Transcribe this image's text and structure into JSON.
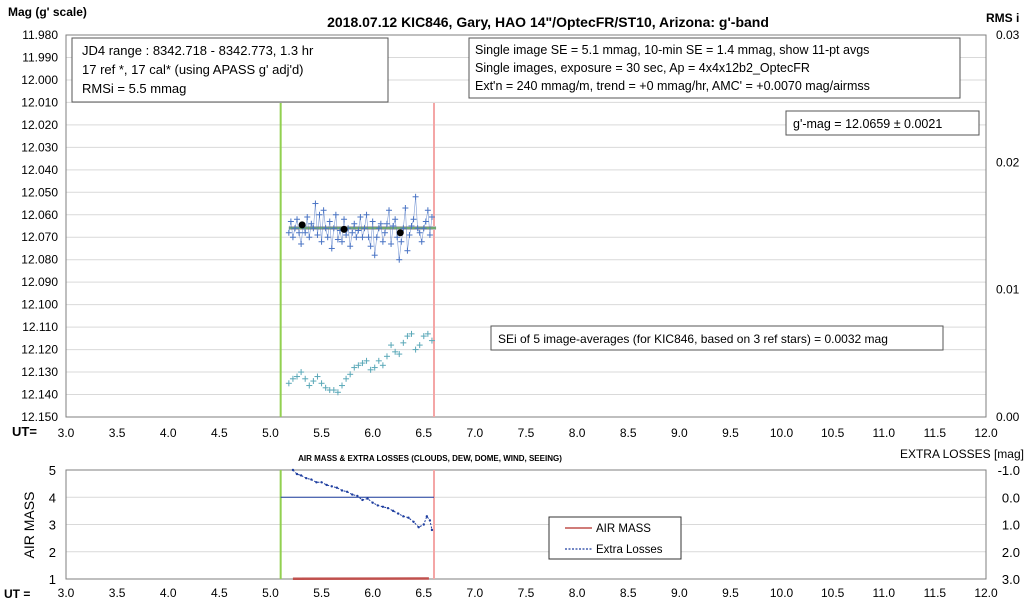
{
  "top_chart": {
    "title": "2018.07.12  KIC846,  Gary,  HAO  14\"/OptecFR/ST10,  Arizona:  g'-band",
    "ylabel_left": "Mag (g' scale)",
    "ylabel_right": "RMS i",
    "x_prefix": "UT=",
    "info_left": [
      "JD4 range : 8342.718 - 8342.773,  1.3  hr",
      "17 ref *, 17 cal* (using APASS g' adj'd)",
      "RMSi = 5.5 mmag"
    ],
    "info_right": [
      "Single image SE = 5.1 mmag, 10-min SE = 1.4 mmag, show  11-pt avgs",
      "Single images, exposure = 30 sec, Ap = 4x4x12b2_OptecFR",
      "Ext'n = 240 mmag/m, trend =  +0 mmag/hr, AMC' = +0.0070 mag/airmss"
    ],
    "gmag_label": "g'-mag = 12.0659 ± 0.0021",
    "sei_label": "SEi of 5 image-averages (for KIC846, based on 3 ref stars) = 0.0032  mag"
  },
  "bottom_chart": {
    "title": "AIR MASS & EXTRA LOSSES (CLOUDS, DEW, DOME, WIND, SEEING)",
    "ylabel_left": "AIR MASS",
    "ylabel_right": "EXTRA LOSSES [mag]",
    "x_prefix": "UT =",
    "legend": [
      "AIR MASS",
      "Extra Losses"
    ]
  },
  "chart_data": [
    {
      "type": "scatter",
      "title": "2018.07.12  KIC846,  Gary,  HAO  14\"/OptecFR/ST10,  Arizona:  g'-band",
      "xlabel": "UT=",
      "ylabel": "Mag (g' scale)",
      "xlim": [
        3.0,
        12.0
      ],
      "ylim": [
        12.15,
        11.98
      ],
      "y2label": "RMS i",
      "y2lim": [
        0.0,
        0.03
      ],
      "x_ticks": [
        "3.0",
        "3.5",
        "4.0",
        "4.5",
        "5.0",
        "5.5",
        "6.0",
        "6.5",
        "7.0",
        "7.5",
        "8.0",
        "8.5",
        "9.0",
        "9.5",
        "10.0",
        "10.5",
        "11.0",
        "11.5",
        "12.0"
      ],
      "y_ticks": [
        "11.980",
        "11.990",
        "12.000",
        "12.010",
        "12.020",
        "12.030",
        "12.040",
        "12.050",
        "12.060",
        "12.070",
        "12.080",
        "12.090",
        "12.100",
        "12.110",
        "12.120",
        "12.130",
        "12.140",
        "12.150"
      ],
      "y2_ticks": [
        "0.03",
        "0.02",
        "0.01",
        "0.00"
      ],
      "vertical_lines": [
        {
          "x": 5.1,
          "color": "#92d050"
        },
        {
          "x": 6.6,
          "color": "#f4a6a6"
        }
      ],
      "mean_line": {
        "x": [
          5.18,
          6.62
        ],
        "y": 12.0659,
        "color": "#6fa86f"
      },
      "series": [
        {
          "name": "",
          "marker": "+",
          "color": "#4a74c4",
          "x": [
            5.18,
            5.2,
            5.22,
            5.24,
            5.26,
            5.28,
            5.3,
            5.32,
            5.34,
            5.36,
            5.38,
            5.4,
            5.42,
            5.44,
            5.46,
            5.48,
            5.5,
            5.52,
            5.54,
            5.56,
            5.58,
            5.6,
            5.62,
            5.64,
            5.66,
            5.68,
            5.7,
            5.72,
            5.74,
            5.76,
            5.78,
            5.8,
            5.82,
            5.84,
            5.86,
            5.88,
            5.9,
            5.92,
            5.94,
            5.96,
            5.98,
            6.0,
            6.02,
            6.04,
            6.06,
            6.08,
            6.1,
            6.12,
            6.14,
            6.16,
            6.18,
            6.2,
            6.22,
            6.24,
            6.26,
            6.28,
            6.3,
            6.32,
            6.34,
            6.36,
            6.38,
            6.4,
            6.42,
            6.44,
            6.46,
            6.48,
            6.5,
            6.52,
            6.54,
            6.56,
            6.58
          ],
          "y": [
            12.068,
            12.063,
            12.07,
            12.066,
            12.062,
            12.068,
            12.073,
            12.065,
            12.068,
            12.061,
            12.07,
            12.064,
            12.066,
            12.055,
            12.069,
            12.06,
            12.072,
            12.058,
            12.066,
            12.07,
            12.063,
            12.075,
            12.066,
            12.06,
            12.071,
            12.067,
            12.072,
            12.062,
            12.069,
            12.066,
            12.074,
            12.068,
            12.064,
            12.07,
            12.067,
            12.061,
            12.07,
            12.066,
            12.06,
            12.07,
            12.074,
            12.063,
            12.078,
            12.07,
            12.066,
            12.064,
            12.072,
            12.068,
            12.064,
            12.058,
            12.073,
            12.065,
            12.062,
            12.07,
            12.08,
            12.072,
            12.066,
            12.057,
            12.076,
            12.069,
            12.065,
            12.062,
            12.052,
            12.066,
            12.068,
            12.072,
            12.066,
            12.063,
            12.058,
            12.069,
            12.061
          ]
        },
        {
          "name": "",
          "marker": "+",
          "color": "#5aa8b8",
          "x": [
            5.18,
            5.22,
            5.26,
            5.3,
            5.34,
            5.38,
            5.42,
            5.46,
            5.5,
            5.54,
            5.58,
            5.62,
            5.66,
            5.7,
            5.74,
            5.78,
            5.82,
            5.86,
            5.9,
            5.94,
            5.98,
            6.02,
            6.06,
            6.1,
            6.14,
            6.18,
            6.22,
            6.26,
            6.3,
            6.34,
            6.38,
            6.42,
            6.46,
            6.5,
            6.54,
            6.58
          ],
          "y": [
            12.135,
            12.133,
            12.132,
            12.13,
            12.133,
            12.136,
            12.134,
            12.132,
            12.135,
            12.137,
            12.138,
            12.138,
            12.139,
            12.136,
            12.133,
            12.131,
            12.128,
            12.127,
            12.126,
            12.125,
            12.129,
            12.128,
            12.125,
            12.127,
            12.123,
            12.118,
            12.121,
            12.122,
            12.117,
            12.114,
            12.113,
            12.12,
            12.118,
            12.114,
            12.113,
            12.116
          ]
        },
        {
          "name": "",
          "marker": "dot",
          "color": "#000000",
          "x": [
            5.31,
            5.72,
            6.27
          ],
          "y": [
            12.0645,
            12.0665,
            12.068
          ]
        }
      ]
    },
    {
      "type": "line",
      "title": "AIR MASS & EXTRA LOSSES (CLOUDS, DEW, DOME, WIND, SEEING)",
      "xlabel": "UT =",
      "ylabel": "AIR MASS",
      "xlim": [
        3.0,
        12.0
      ],
      "ylim": [
        1,
        5
      ],
      "y2label": "EXTRA LOSSES [mag]",
      "y2lim": [
        3.0,
        -1.0
      ],
      "x_ticks": [
        "3.0",
        "3.5",
        "4.0",
        "4.5",
        "5.0",
        "5.5",
        "6.0",
        "6.5",
        "7.0",
        "7.5",
        "8.0",
        "8.5",
        "9.0",
        "9.5",
        "10.0",
        "10.5",
        "11.0",
        "11.5",
        "12.0"
      ],
      "y_ticks": [
        "5",
        "4",
        "3",
        "2",
        "1"
      ],
      "y2_ticks": [
        "-1.0",
        "0.0",
        "1.0",
        "2.0",
        "3.0"
      ],
      "series": [
        {
          "name": "AIR MASS",
          "color": "#c0504d",
          "axis": "left",
          "x": [
            5.22,
            6.55
          ],
          "y": [
            1.01,
            1.02
          ]
        },
        {
          "name": "Extra Losses",
          "color": "#1f3fa0",
          "axis": "right",
          "dashed": true,
          "x": [
            5.22,
            5.26,
            5.3,
            5.35,
            5.4,
            5.45,
            5.5,
            5.55,
            5.6,
            5.65,
            5.7,
            5.75,
            5.8,
            5.85,
            5.9,
            5.95,
            6.0,
            6.05,
            6.1,
            6.15,
            6.2,
            6.25,
            6.3,
            6.35,
            6.4,
            6.45,
            6.5,
            6.53,
            6.56,
            6.58
          ],
          "y": [
            -1.0,
            -0.85,
            -0.8,
            -0.7,
            -0.65,
            -0.55,
            -0.55,
            -0.45,
            -0.4,
            -0.35,
            -0.25,
            -0.2,
            -0.1,
            -0.05,
            0.1,
            0.05,
            0.2,
            0.3,
            0.35,
            0.4,
            0.5,
            0.6,
            0.7,
            0.75,
            0.9,
            1.1,
            1.0,
            0.7,
            0.85,
            1.2
          ]
        },
        {
          "name": "",
          "color": "#1f3fa0",
          "axis": "right",
          "x": [
            5.1,
            6.6
          ],
          "y": [
            0.0,
            0.0
          ]
        }
      ],
      "vertical_lines": [
        {
          "x": 5.1,
          "color": "#92d050"
        },
        {
          "x": 6.6,
          "color": "#f4a6a6"
        }
      ]
    }
  ]
}
